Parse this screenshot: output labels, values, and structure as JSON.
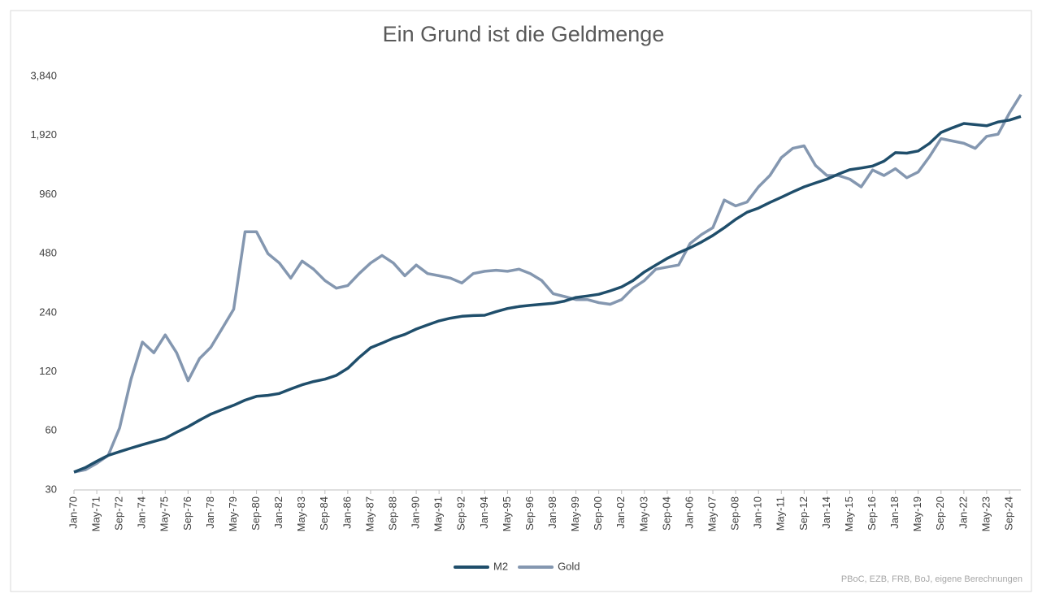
{
  "chart_data": {
    "type": "line",
    "title": "Ein Grund ist die Geldmenge",
    "source": "PBoC, EZB, FRB, BoJ, eigene Berechnungen",
    "log_scale": true,
    "grid": false,
    "legend": "bottom",
    "x": [
      "Jan-70",
      null,
      "May-71",
      null,
      "Sep-72",
      null,
      "Jan-74",
      null,
      "May-75",
      null,
      "Sep-76",
      null,
      "Jan-78",
      null,
      "May-79",
      null,
      "Sep-80",
      null,
      "Jan-82",
      null,
      "May-83",
      null,
      "Sep-84",
      null,
      "Jan-86",
      null,
      "May-87",
      null,
      "Sep-88",
      null,
      "Jan-90",
      null,
      "May-91",
      null,
      "Sep-92",
      null,
      "Jan-94",
      null,
      "May-95",
      null,
      "Sep-96",
      null,
      "Jan-98",
      null,
      "May-99",
      null,
      "Sep-00",
      null,
      "Jan-02",
      null,
      "May-03",
      null,
      "Sep-04",
      null,
      "Jan-06",
      null,
      "May-07",
      null,
      "Sep-08",
      null,
      "Jan-10",
      null,
      "May-11",
      null,
      "Sep-12",
      null,
      "Jan-14",
      null,
      "May-15",
      null,
      "Sep-16",
      null,
      "Jan-18",
      null,
      "May-19",
      null,
      "Sep-20",
      null,
      "Jan-22",
      null,
      "May-23",
      null,
      "Sep-24",
      null
    ],
    "series": [
      {
        "name": "M2",
        "color": "#1f4e6b",
        "values": [
          37,
          39,
          42,
          45,
          47,
          49,
          51,
          53,
          55,
          59,
          63,
          68,
          73,
          77,
          81,
          86,
          90,
          91,
          93,
          98,
          103,
          107,
          110,
          115,
          125,
          142,
          159,
          168,
          178,
          186,
          198,
          208,
          218,
          225,
          230,
          232,
          233,
          243,
          252,
          258,
          262,
          265,
          268,
          275,
          287,
          292,
          298,
          310,
          325,
          350,
          387,
          420,
          454,
          485,
          514,
          550,
          594,
          650,
          717,
          780,
          819,
          875,
          930,
          990,
          1050,
          1100,
          1150,
          1220,
          1284,
          1310,
          1340,
          1420,
          1569,
          1560,
          1600,
          1750,
          1990,
          2100,
          2210,
          2180,
          2150,
          2250,
          2300,
          2400
        ]
      },
      {
        "name": "Gold",
        "color": "#8497b0",
        "values": [
          37,
          38,
          41,
          45,
          62,
          110,
          170,
          150,
          185,
          150,
          108,
          140,
          160,
          200,
          250,
          620,
          620,
          480,
          430,
          360,
          440,
          400,
          350,
          320,
          330,
          380,
          430,
          470,
          430,
          370,
          420,
          380,
          370,
          360,
          340,
          380,
          390,
          395,
          390,
          400,
          380,
          350,
          300,
          290,
          280,
          280,
          270,
          265,
          280,
          320,
          350,
          400,
          410,
          420,
          540,
          600,
          650,
          900,
          840,
          880,
          1050,
          1200,
          1480,
          1650,
          1700,
          1350,
          1200,
          1200,
          1150,
          1050,
          1280,
          1200,
          1300,
          1170,
          1250,
          1500,
          1850,
          1800,
          1750,
          1650,
          1900,
          1950,
          2500,
          3100
        ]
      }
    ],
    "ylim": [
      30,
      3840
    ],
    "yticks": [
      30,
      60,
      120,
      240,
      480,
      960,
      {
        "value": 1920,
        "label": "1,920"
      },
      {
        "value": 3840,
        "label": "3,840"
      }
    ]
  }
}
